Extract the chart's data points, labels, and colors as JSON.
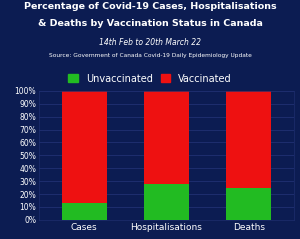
{
  "categories": [
    "Cases",
    "Hospitalisations",
    "Deaths"
  ],
  "unvaccinated": [
    13,
    28,
    25
  ],
  "vaccinated": [
    87,
    72,
    75
  ],
  "color_unvaccinated": "#22bb22",
  "color_vaccinated": "#ee1111",
  "background_color": "#0c1c52",
  "text_color": "#ffffff",
  "grid_color": "#1e2e6e",
  "title_line1": "Percentage of Covid-19 Cases, Hospitalisations",
  "title_line2": "& Deaths by Vaccination Status in Canada",
  "subtitle1": "14th Feb to 20th March 22",
  "subtitle2": "Source: Government of Canada Covid-19 Daily Epidemiology Update",
  "legend_unvaccinated": "Unvaccinated",
  "legend_vaccinated": "Vaccinated",
  "ylim": [
    0,
    100
  ],
  "yticks": [
    0,
    10,
    20,
    30,
    40,
    50,
    60,
    70,
    80,
    90,
    100
  ],
  "ytick_labels": [
    "0%",
    "10%",
    "20%",
    "30%",
    "40%",
    "50%",
    "60%",
    "70%",
    "80%",
    "90%",
    "100%"
  ],
  "bar_width": 0.55
}
